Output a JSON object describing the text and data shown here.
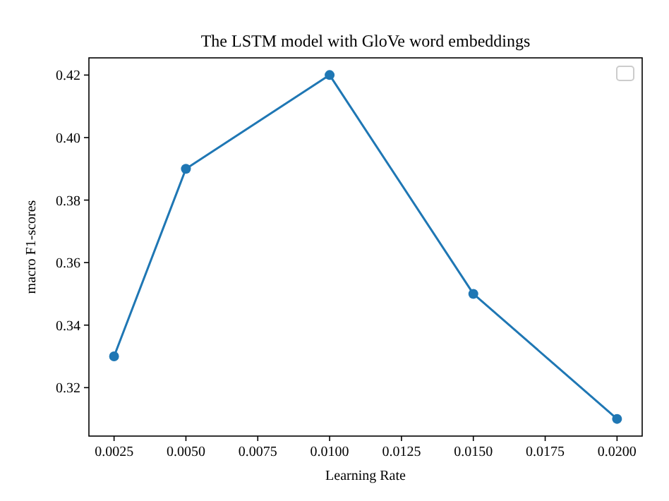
{
  "chart_data": {
    "type": "line",
    "title": "The LSTM model with GloVe word embeddings",
    "xlabel": "Learning Rate",
    "ylabel": "macro F1-scores",
    "x": [
      0.0025,
      0.005,
      0.01,
      0.015,
      0.02
    ],
    "series": [
      {
        "color": "#1f77b4",
        "values": [
          0.33,
          0.39,
          0.42,
          0.35,
          0.31
        ]
      }
    ],
    "xlim": [
      0.001625,
      0.020875
    ],
    "ylim": [
      0.3045,
      0.4255
    ],
    "xticks": [
      {
        "value": 0.0025,
        "label": "0.0025"
      },
      {
        "value": 0.005,
        "label": "0.0050"
      },
      {
        "value": 0.0075,
        "label": "0.0075"
      },
      {
        "value": 0.01,
        "label": "0.0100"
      },
      {
        "value": 0.0125,
        "label": "0.0125"
      },
      {
        "value": 0.015,
        "label": "0.0150"
      },
      {
        "value": 0.0175,
        "label": "0.0175"
      },
      {
        "value": 0.02,
        "label": "0.0200"
      }
    ],
    "yticks": [
      {
        "value": 0.32,
        "label": "0.32"
      },
      {
        "value": 0.34,
        "label": "0.34"
      },
      {
        "value": 0.36,
        "label": "0.36"
      },
      {
        "value": 0.38,
        "label": "0.38"
      },
      {
        "value": 0.4,
        "label": "0.40"
      },
      {
        "value": 0.42,
        "label": "0.42"
      }
    ],
    "marker": "circle",
    "line_style": "solid",
    "grid": false
  }
}
